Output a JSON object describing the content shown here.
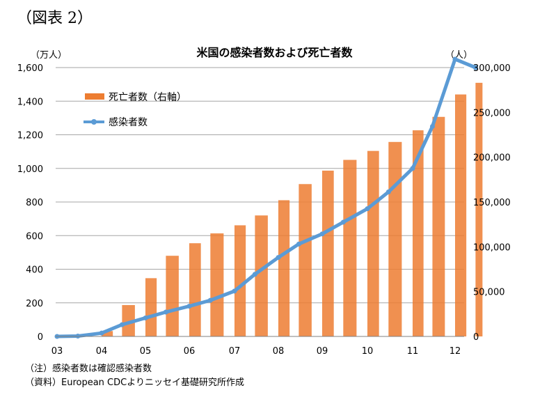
{
  "header": {
    "figure_label": "（図表 2）",
    "title": "米国の感染者数および死亡者数",
    "left_unit": "（万人）",
    "right_unit": "（人）"
  },
  "notes": {
    "note1": "（注）感染者数は確認感染者数",
    "note2": "（資料）European CDCよりニッセイ基礎研究所作成"
  },
  "colors": {
    "deaths": "#ED7D31",
    "cases": "#5B9BD5",
    "grid": "#A6A6A6"
  },
  "chart_data": {
    "type": "bar+line",
    "grid": "horizontal",
    "legend_position": "upper-left",
    "x_ticks": [
      "03",
      "04",
      "05",
      "06",
      "07",
      "08",
      "09",
      "10",
      "11",
      "12"
    ],
    "y_left": {
      "label": "（万人）",
      "range": [
        0,
        1600
      ],
      "ticks": [
        "0",
        "200",
        "400",
        "600",
        "800",
        "1,000",
        "1,200",
        "1,400",
        "1,600"
      ]
    },
    "y_right": {
      "label": "（人）",
      "range": [
        0,
        300000
      ],
      "ticks": [
        "0",
        "50,000",
        "100,000",
        "150,000",
        "200,000",
        "250,000",
        "300,000"
      ]
    },
    "series": [
      {
        "name": "死亡者数（右軸）",
        "type": "bar",
        "axis": "right",
        "x": [
          "03-01",
          "03-15",
          "04-01",
          "04-15",
          "05-01",
          "05-15",
          "06-01",
          "06-15",
          "07-01",
          "07-15",
          "08-01",
          "08-15",
          "09-01",
          "09-15",
          "10-01",
          "10-15",
          "11-01",
          "11-15",
          "12-01",
          "12-15"
        ],
        "y": [
          0,
          1000,
          6000,
          35000,
          65000,
          90000,
          104000,
          115000,
          124000,
          135000,
          152000,
          170000,
          185000,
          197000,
          207000,
          217000,
          230000,
          245000,
          270000,
          283000
        ]
      },
      {
        "name": "感染者数",
        "type": "line",
        "axis": "left",
        "x": [
          "03-01",
          "03-15",
          "04-01",
          "04-15",
          "05-01",
          "05-15",
          "06-01",
          "06-15",
          "07-01",
          "07-15",
          "08-01",
          "08-15",
          "09-01",
          "09-15",
          "10-01",
          "10-15",
          "11-01",
          "11-15",
          "12-01",
          "12-15"
        ],
        "y": [
          0,
          2,
          20,
          70,
          110,
          145,
          180,
          215,
          270,
          370,
          470,
          550,
          610,
          680,
          760,
          860,
          1000,
          1250,
          1650,
          1600
        ]
      }
    ]
  }
}
